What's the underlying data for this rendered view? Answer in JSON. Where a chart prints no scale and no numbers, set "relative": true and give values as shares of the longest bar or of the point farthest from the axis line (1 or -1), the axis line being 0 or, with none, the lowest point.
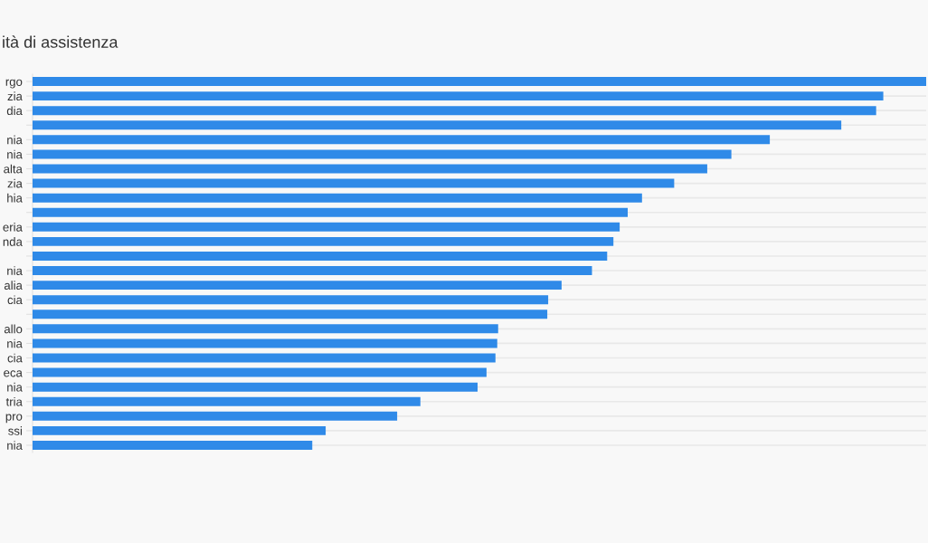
{
  "chart_data": {
    "type": "bar",
    "orientation": "horizontal",
    "relative": true,
    "title": "ità di assistenza",
    "categories": [
      "rgo",
      "zia",
      "dia",
      null,
      "nia",
      "nia",
      "alta",
      "zia",
      "hia",
      null,
      "eria",
      "nda",
      null,
      "nia",
      "alia",
      "cia",
      null,
      "allo",
      "nia",
      "cia",
      "eca",
      "nia",
      "tria",
      "pro",
      "ssi",
      "nia"
    ],
    "values": [
      1,
      0.952,
      0.944,
      0.905,
      0.825,
      0.782,
      0.755,
      0.718,
      0.682,
      0.666,
      0.657,
      0.65,
      0.643,
      0.626,
      0.592,
      0.577,
      0.576,
      0.521,
      0.52,
      0.518,
      0.508,
      0.498,
      0.434,
      0.408,
      0.328,
      0.313
    ],
    "color": "#2f8ae8",
    "grid": "y",
    "legend": false
  }
}
